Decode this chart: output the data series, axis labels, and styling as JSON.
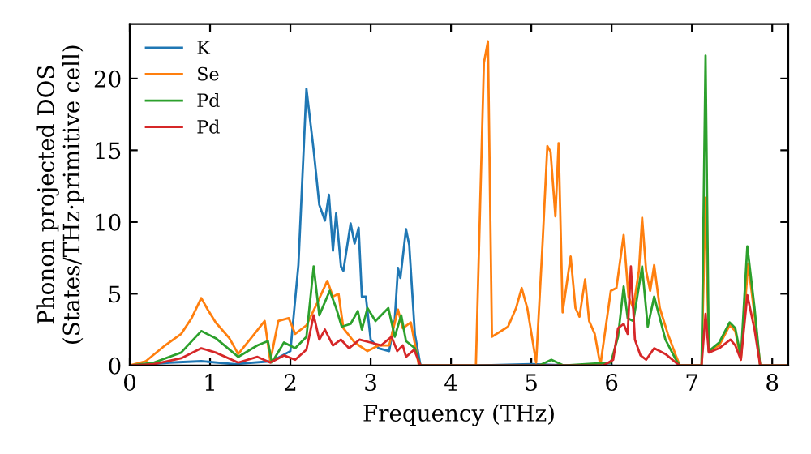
{
  "chart_data": {
    "type": "line",
    "xlabel": "Frequency (THz)",
    "ylabel": "Phonon projected DOS\n(States/THz·primitive cell)",
    "xlim": [
      0,
      8.2
    ],
    "ylim": [
      0,
      23.8
    ],
    "xticks": [
      0,
      1,
      2,
      3,
      4,
      5,
      6,
      7,
      8
    ],
    "yticks": [
      0,
      5,
      10,
      15,
      20
    ],
    "legend": "top left",
    "grid": false,
    "series": [
      {
        "name": "K",
        "color": "#1f77b4",
        "x": [
          0,
          0.5,
          0.89,
          1.3,
          1.77,
          2.0,
          2.1,
          2.2,
          2.29,
          2.36,
          2.43,
          2.48,
          2.53,
          2.57,
          2.63,
          2.66,
          2.75,
          2.8,
          2.85,
          2.89,
          2.94,
          3.0,
          3.1,
          3.23,
          3.3,
          3.34,
          3.37,
          3.44,
          3.48,
          3.55,
          3.62,
          4.3,
          5.0,
          5.5,
          6.0
        ],
        "values": [
          0,
          0.2,
          0.3,
          0.1,
          0.3,
          1.0,
          7.0,
          19.3,
          15.0,
          11.2,
          10.1,
          11.9,
          8.0,
          10.6,
          6.9,
          6.6,
          9.9,
          8.5,
          9.6,
          4.8,
          4.8,
          1.8,
          1.2,
          1.0,
          3.2,
          6.8,
          6.1,
          9.5,
          8.4,
          2.2,
          0,
          0,
          0.1,
          0,
          0
        ]
      },
      {
        "name": "Se",
        "color": "#ff7f0e",
        "x": [
          0,
          0.2,
          0.44,
          0.64,
          0.77,
          0.89,
          0.97,
          1.07,
          1.24,
          1.35,
          1.51,
          1.68,
          1.75,
          1.85,
          1.98,
          2.06,
          2.2,
          2.33,
          2.46,
          2.53,
          2.6,
          2.66,
          2.8,
          2.96,
          3.1,
          3.23,
          3.34,
          3.4,
          3.5,
          3.6,
          4.31,
          4.41,
          4.46,
          4.51,
          4.71,
          4.81,
          4.88,
          4.95,
          5.06,
          5.14,
          5.2,
          5.24,
          5.3,
          5.34,
          5.39,
          5.49,
          5.55,
          5.6,
          5.67,
          5.72,
          5.79,
          5.86,
          5.99,
          6.06,
          6.15,
          6.21,
          6.27,
          6.34,
          6.38,
          6.43,
          6.48,
          6.53,
          6.6,
          6.7,
          6.8,
          6.85,
          7.12,
          7.17,
          7.21,
          7.34,
          7.47,
          7.54,
          7.61,
          7.7,
          7.78,
          7.85,
          8.2
        ],
        "values": [
          0,
          0.3,
          1.4,
          2.2,
          3.3,
          4.7,
          3.9,
          3.0,
          1.9,
          0.8,
          1.9,
          3.1,
          0.3,
          3.1,
          3.3,
          2.2,
          2.8,
          4.3,
          5.9,
          4.8,
          5.0,
          2.6,
          1.6,
          1.0,
          1.4,
          1.4,
          3.9,
          2.6,
          3.0,
          0,
          0,
          21.1,
          22.6,
          2.0,
          2.7,
          4.0,
          5.4,
          4.0,
          0.2,
          8.5,
          15.3,
          14.9,
          10.4,
          15.5,
          3.7,
          7.6,
          4.0,
          3.4,
          6.0,
          3.1,
          2.2,
          0,
          5.2,
          5.4,
          9.1,
          4.8,
          4.0,
          6.6,
          10.3,
          6.6,
          5.2,
          7.0,
          4.0,
          2.2,
          0.7,
          0,
          0,
          11.7,
          1.0,
          1.4,
          2.8,
          2.4,
          0.4,
          7.1,
          3.5,
          0,
          0
        ]
      },
      {
        "name": "Pd",
        "color": "#2ca02c",
        "x": [
          0,
          0.3,
          0.64,
          0.89,
          1.07,
          1.35,
          1.59,
          1.72,
          1.77,
          1.92,
          2.06,
          2.2,
          2.29,
          2.36,
          2.49,
          2.57,
          2.64,
          2.75,
          2.84,
          2.89,
          2.96,
          3.06,
          3.22,
          3.3,
          3.38,
          3.44,
          3.55,
          3.62,
          5.1,
          5.25,
          5.4,
          5.99,
          6.08,
          6.15,
          6.2,
          6.27,
          6.38,
          6.45,
          6.53,
          6.67,
          6.8,
          6.85,
          7.12,
          7.17,
          7.21,
          7.34,
          7.47,
          7.54,
          7.61,
          7.69,
          7.78,
          7.85,
          8.2
        ],
        "values": [
          0,
          0.2,
          0.9,
          2.4,
          1.9,
          0.6,
          1.4,
          1.7,
          0.2,
          1.6,
          1.2,
          2.0,
          6.9,
          3.5,
          5.2,
          4.0,
          2.7,
          2.9,
          3.8,
          2.5,
          4.0,
          3.1,
          4.0,
          2.0,
          3.5,
          1.7,
          1.2,
          0,
          0,
          0.4,
          0,
          0.2,
          2.0,
          5.5,
          3.3,
          3.1,
          6.9,
          2.7,
          4.8,
          1.8,
          0.4,
          0,
          0,
          21.6,
          1.0,
          1.6,
          3.0,
          2.6,
          0.6,
          8.3,
          4.0,
          0,
          0
        ]
      },
      {
        "name": "Pd",
        "color": "#d62728",
        "x": [
          0,
          0.3,
          0.64,
          0.89,
          1.07,
          1.35,
          1.59,
          1.75,
          1.92,
          2.06,
          2.2,
          2.29,
          2.36,
          2.43,
          2.53,
          2.63,
          2.73,
          2.86,
          3.0,
          3.13,
          3.26,
          3.33,
          3.4,
          3.44,
          3.54,
          3.62,
          5.9,
          6.02,
          6.08,
          6.15,
          6.2,
          6.24,
          6.29,
          6.36,
          6.43,
          6.53,
          6.67,
          6.8,
          6.85,
          7.12,
          7.17,
          7.21,
          7.34,
          7.48,
          7.54,
          7.61,
          7.69,
          7.78,
          7.85,
          8.2
        ],
        "values": [
          0,
          0.1,
          0.5,
          1.2,
          0.9,
          0.2,
          0.6,
          0.2,
          0.7,
          0.4,
          1.1,
          3.5,
          1.8,
          2.5,
          1.4,
          1.8,
          1.2,
          1.8,
          1.6,
          1.4,
          2.0,
          1.0,
          1.4,
          0.6,
          1.1,
          0,
          0,
          0.4,
          2.6,
          2.9,
          2.2,
          6.9,
          1.8,
          0.7,
          0.4,
          1.2,
          0.8,
          0.2,
          0,
          0,
          3.6,
          0.9,
          1.2,
          1.8,
          1.4,
          0.4,
          4.9,
          2.5,
          0,
          0
        ]
      }
    ]
  }
}
